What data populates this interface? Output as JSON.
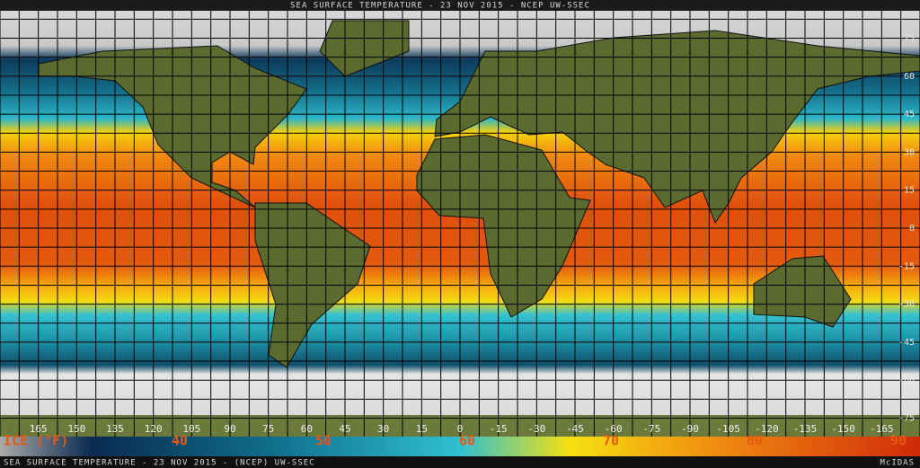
{
  "header": {
    "title": "SEA SURFACE TEMPERATURE - 23 NOV 2015 - NCEP UW-SSEC"
  },
  "map": {
    "latitude_labels": [
      75,
      60,
      45,
      30,
      15,
      0,
      -15,
      -30,
      -45,
      -60,
      -75
    ],
    "longitude_labels": [
      165,
      150,
      135,
      120,
      105,
      90,
      75,
      60,
      45,
      30,
      15,
      0,
      -15,
      -30,
      -45,
      -60,
      -75,
      -90,
      -105,
      -120,
      -135,
      -150,
      -165
    ]
  },
  "legend": {
    "label": "ICE (°F)",
    "ticks": [
      40,
      50,
      60,
      70,
      80,
      90
    ]
  },
  "footer": {
    "caption": "SEA SURFACE TEMPERATURE - 23 NOV 2015 - (NCEP)  UW-SSEC",
    "credit": "McIDAS"
  }
}
